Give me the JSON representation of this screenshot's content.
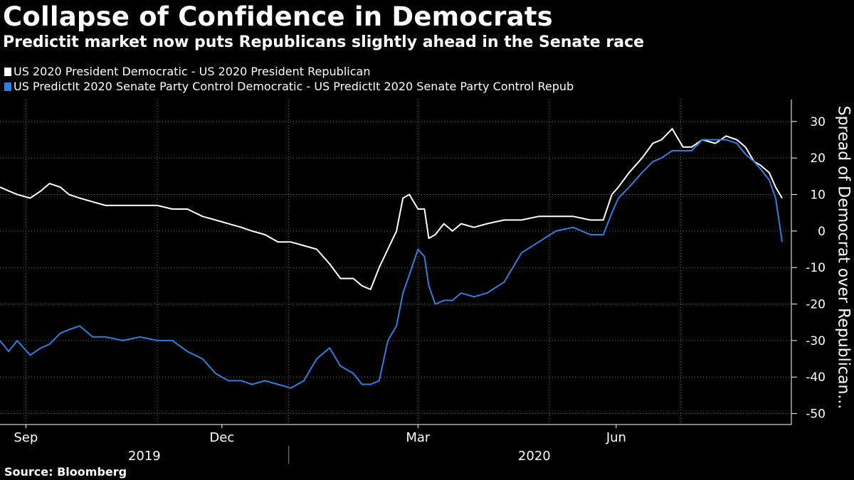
{
  "header": {
    "title": "Collapse of Confidence in Democrats",
    "subtitle": "Predictit market now puts Republicans slightly ahead in the Senate race"
  },
  "footer": {
    "source": "Source: Bloomberg"
  },
  "colors": {
    "background": "#000000",
    "series_president": "#ffffff",
    "series_senate": "#2f7fe0",
    "grid": "#6b6b6b"
  },
  "chart_data": {
    "type": "line",
    "title": "Collapse of Confidence in Democrats",
    "subtitle": "Predictit market now puts Republicans slightly ahead in the Senate race",
    "ylabel": "Spread of Democrat over Republican...",
    "xlabel": "",
    "ylim": [
      -53,
      36
    ],
    "yticks": [
      30,
      20,
      10,
      0,
      -10,
      -20,
      -30,
      -40,
      -50
    ],
    "y_axis_side": "right",
    "grid": true,
    "legend_position": "top-left",
    "xlim": [
      "2019-08-20",
      "2020-08-17"
    ],
    "x_tick_labels": [
      {
        "date": "2019-09-01",
        "label": "Sep"
      },
      {
        "date": "2019-12-01",
        "label": "Dec"
      },
      {
        "date": "2020-03-01",
        "label": "Mar"
      },
      {
        "date": "2020-06-01",
        "label": "Jun"
      }
    ],
    "x_gridlines": [
      "2019-09-01",
      "2019-11-01",
      "2020-01-01",
      "2020-03-01",
      "2020-05-01",
      "2020-07-01"
    ],
    "year_labels": [
      {
        "label": "2019",
        "center": "2019-10-26"
      },
      {
        "label": "2020",
        "center": "2020-04-24"
      }
    ],
    "year_divider": "2020-01-01",
    "series": [
      {
        "name": "US 2020 President Democratic - US 2020 President Republican",
        "color": "#ffffff",
        "points": [
          [
            "2019-08-20",
            12
          ],
          [
            "2019-08-24",
            11
          ],
          [
            "2019-08-28",
            10
          ],
          [
            "2019-09-03",
            9
          ],
          [
            "2019-09-08",
            11
          ],
          [
            "2019-09-12",
            13
          ],
          [
            "2019-09-17",
            12
          ],
          [
            "2019-09-21",
            10
          ],
          [
            "2019-09-26",
            9
          ],
          [
            "2019-10-02",
            8
          ],
          [
            "2019-10-08",
            7
          ],
          [
            "2019-10-16",
            7
          ],
          [
            "2019-10-24",
            7
          ],
          [
            "2019-11-01",
            7
          ],
          [
            "2019-11-08",
            6
          ],
          [
            "2019-11-15",
            6
          ],
          [
            "2019-11-22",
            4
          ],
          [
            "2019-11-28",
            3
          ],
          [
            "2019-12-04",
            2
          ],
          [
            "2019-12-10",
            1
          ],
          [
            "2019-12-15",
            0
          ],
          [
            "2019-12-21",
            -1
          ],
          [
            "2019-12-27",
            -3
          ],
          [
            "2020-01-02",
            -3
          ],
          [
            "2020-01-08",
            -4
          ],
          [
            "2020-01-14",
            -5
          ],
          [
            "2020-01-20",
            -9
          ],
          [
            "2020-01-25",
            -13
          ],
          [
            "2020-01-31",
            -13
          ],
          [
            "2020-02-04",
            -15
          ],
          [
            "2020-02-08",
            -16
          ],
          [
            "2020-02-12",
            -10
          ],
          [
            "2020-02-16",
            -5
          ],
          [
            "2020-02-20",
            0
          ],
          [
            "2020-02-23",
            9
          ],
          [
            "2020-02-26",
            10
          ],
          [
            "2020-03-01",
            6
          ],
          [
            "2020-03-04",
            6
          ],
          [
            "2020-03-06",
            -2
          ],
          [
            "2020-03-09",
            -1
          ],
          [
            "2020-03-13",
            2
          ],
          [
            "2020-03-17",
            0
          ],
          [
            "2020-03-21",
            2
          ],
          [
            "2020-03-27",
            1
          ],
          [
            "2020-04-02",
            2
          ],
          [
            "2020-04-10",
            3
          ],
          [
            "2020-04-18",
            3
          ],
          [
            "2020-04-26",
            4
          ],
          [
            "2020-05-04",
            4
          ],
          [
            "2020-05-12",
            4
          ],
          [
            "2020-05-20",
            3
          ],
          [
            "2020-05-26",
            3
          ],
          [
            "2020-05-30",
            10
          ],
          [
            "2020-06-02",
            12
          ],
          [
            "2020-06-07",
            16
          ],
          [
            "2020-06-13",
            20
          ],
          [
            "2020-06-18",
            24
          ],
          [
            "2020-06-22",
            25
          ],
          [
            "2020-06-27",
            28
          ],
          [
            "2020-07-02",
            23
          ],
          [
            "2020-07-06",
            23
          ],
          [
            "2020-07-11",
            25
          ],
          [
            "2020-07-17",
            24
          ],
          [
            "2020-07-22",
            26
          ],
          [
            "2020-07-27",
            25
          ],
          [
            "2020-07-31",
            23
          ],
          [
            "2020-08-04",
            19
          ],
          [
            "2020-08-07",
            18
          ],
          [
            "2020-08-11",
            16
          ],
          [
            "2020-08-14",
            12
          ],
          [
            "2020-08-17",
            9
          ]
        ]
      },
      {
        "name": "US PredictIt 2020 Senate Party Control Democratic - US PredictIt 2020 Senate Party Control Repub",
        "color": "#2f7fe0",
        "points": [
          [
            "2019-08-20",
            -30
          ],
          [
            "2019-08-24",
            -33
          ],
          [
            "2019-08-28",
            -30
          ],
          [
            "2019-09-03",
            -34
          ],
          [
            "2019-09-08",
            -32
          ],
          [
            "2019-09-12",
            -31
          ],
          [
            "2019-09-17",
            -28
          ],
          [
            "2019-09-21",
            -27
          ],
          [
            "2019-09-26",
            -26
          ],
          [
            "2019-10-02",
            -29
          ],
          [
            "2019-10-08",
            -29
          ],
          [
            "2019-10-16",
            -30
          ],
          [
            "2019-10-24",
            -29
          ],
          [
            "2019-11-01",
            -30
          ],
          [
            "2019-11-08",
            -30
          ],
          [
            "2019-11-15",
            -33
          ],
          [
            "2019-11-22",
            -35
          ],
          [
            "2019-11-28",
            -39
          ],
          [
            "2019-12-04",
            -41
          ],
          [
            "2019-12-10",
            -41
          ],
          [
            "2019-12-15",
            -42
          ],
          [
            "2019-12-21",
            -41
          ],
          [
            "2019-12-27",
            -42
          ],
          [
            "2020-01-02",
            -43
          ],
          [
            "2020-01-08",
            -41
          ],
          [
            "2020-01-14",
            -35
          ],
          [
            "2020-01-20",
            -32
          ],
          [
            "2020-01-25",
            -37
          ],
          [
            "2020-01-31",
            -39
          ],
          [
            "2020-02-04",
            -42
          ],
          [
            "2020-02-08",
            -42
          ],
          [
            "2020-02-12",
            -41
          ],
          [
            "2020-02-16",
            -30
          ],
          [
            "2020-02-20",
            -26
          ],
          [
            "2020-02-23",
            -17
          ],
          [
            "2020-02-26",
            -12
          ],
          [
            "2020-03-01",
            -5
          ],
          [
            "2020-03-04",
            -7
          ],
          [
            "2020-03-06",
            -15
          ],
          [
            "2020-03-09",
            -20
          ],
          [
            "2020-03-13",
            -19
          ],
          [
            "2020-03-17",
            -19
          ],
          [
            "2020-03-21",
            -17
          ],
          [
            "2020-03-27",
            -18
          ],
          [
            "2020-04-02",
            -17
          ],
          [
            "2020-04-10",
            -14
          ],
          [
            "2020-04-18",
            -6
          ],
          [
            "2020-04-26",
            -3
          ],
          [
            "2020-05-04",
            0
          ],
          [
            "2020-05-12",
            1
          ],
          [
            "2020-05-20",
            -1
          ],
          [
            "2020-05-26",
            -1
          ],
          [
            "2020-05-30",
            5
          ],
          [
            "2020-06-02",
            9
          ],
          [
            "2020-06-07",
            12
          ],
          [
            "2020-06-13",
            16
          ],
          [
            "2020-06-18",
            19
          ],
          [
            "2020-06-22",
            20
          ],
          [
            "2020-06-27",
            22
          ],
          [
            "2020-07-02",
            22
          ],
          [
            "2020-07-06",
            22
          ],
          [
            "2020-07-11",
            25
          ],
          [
            "2020-07-17",
            25
          ],
          [
            "2020-07-22",
            25
          ],
          [
            "2020-07-27",
            24
          ],
          [
            "2020-07-31",
            21
          ],
          [
            "2020-08-04",
            19
          ],
          [
            "2020-08-07",
            17
          ],
          [
            "2020-08-11",
            14
          ],
          [
            "2020-08-14",
            9
          ],
          [
            "2020-08-17",
            -3
          ]
        ]
      }
    ]
  }
}
